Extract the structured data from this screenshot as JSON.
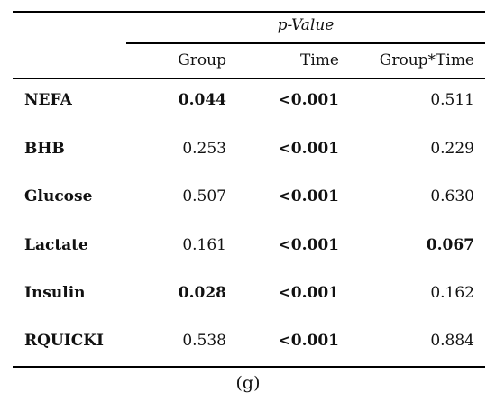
{
  "table": {
    "group_header": "p-Value",
    "columns": [
      "Group",
      "Time",
      "Group*Time"
    ],
    "rows": [
      {
        "name": "NEFA",
        "group": "0.044",
        "time": "<0.001",
        "group_time": "0.511",
        "bold": {
          "group": true,
          "time": true,
          "group_time": false
        }
      },
      {
        "name": "BHB",
        "group": "0.253",
        "time": "<0.001",
        "group_time": "0.229",
        "bold": {
          "group": false,
          "time": true,
          "group_time": false
        }
      },
      {
        "name": "Glucose",
        "group": "0.507",
        "time": "<0.001",
        "group_time": "0.630",
        "bold": {
          "group": false,
          "time": true,
          "group_time": false
        }
      },
      {
        "name": "Lactate",
        "group": "0.161",
        "time": "<0.001",
        "group_time": "0.067",
        "bold": {
          "group": false,
          "time": true,
          "group_time": true
        }
      },
      {
        "name": "Insulin",
        "group": "0.028",
        "time": "<0.001",
        "group_time": "0.162",
        "bold": {
          "group": true,
          "time": true,
          "group_time": false
        }
      },
      {
        "name": "RQUICKI",
        "group": "0.538",
        "time": "<0.001",
        "group_time": "0.884",
        "bold": {
          "group": false,
          "time": true,
          "group_time": false
        }
      }
    ]
  },
  "caption": "(g)"
}
